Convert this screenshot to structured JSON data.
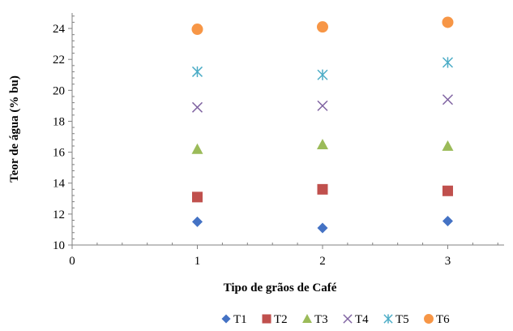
{
  "chart_data": {
    "type": "scatter",
    "xlabel": "Tipo de grãos de Café",
    "ylabel": "Teor de água (% bu)",
    "xlim": [
      0,
      3.45
    ],
    "ylim": [
      10,
      25
    ],
    "x_ticks": [
      "0",
      "1",
      "2",
      "3"
    ],
    "y_ticks": [
      "10",
      "12",
      "14",
      "16",
      "18",
      "20",
      "22",
      "24"
    ],
    "grid": false,
    "legend_position": "bottom",
    "series": [
      {
        "name": "T1",
        "marker": "diamond",
        "color": "#4472C4",
        "x": [
          1,
          2,
          3
        ],
        "y": [
          11.5,
          11.1,
          11.55
        ]
      },
      {
        "name": "T2",
        "marker": "square",
        "color": "#C0504D",
        "x": [
          1,
          2,
          3
        ],
        "y": [
          13.1,
          13.6,
          13.5
        ]
      },
      {
        "name": "T3",
        "marker": "triangle",
        "color": "#9BBB59",
        "x": [
          1,
          2,
          3
        ],
        "y": [
          16.2,
          16.5,
          16.4
        ]
      },
      {
        "name": "T4",
        "marker": "x",
        "color": "#8064A2",
        "x": [
          1,
          2,
          3
        ],
        "y": [
          18.9,
          19.0,
          19.4
        ]
      },
      {
        "name": "T5",
        "marker": "star",
        "color": "#4BACC6",
        "x": [
          1,
          2,
          3
        ],
        "y": [
          21.2,
          21.0,
          21.8
        ]
      },
      {
        "name": "T6",
        "marker": "circle",
        "color": "#F79646",
        "x": [
          1,
          2,
          3
        ],
        "y": [
          23.95,
          24.1,
          24.4
        ]
      }
    ]
  }
}
